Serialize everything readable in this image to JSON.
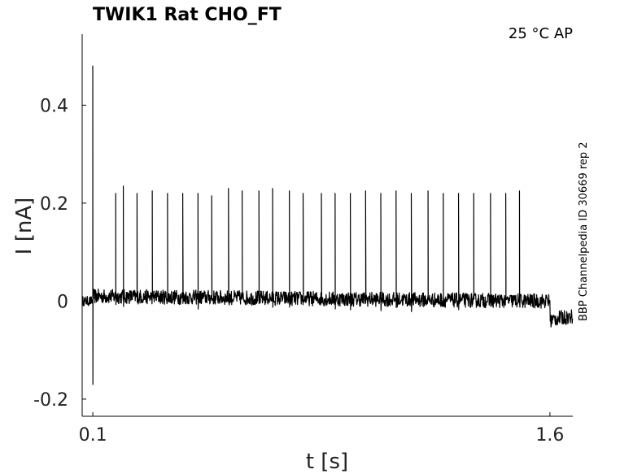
{
  "chart_data": {
    "type": "line",
    "title": "TWIK1  Rat  CHO_FT",
    "condition": "25 °C  AP",
    "side_label": "BBP Channelpedia ID 30669 rep 2",
    "xlabel": "t [s]",
    "ylabel": "I [nA]",
    "xlim": [
      0.065,
      1.675
    ],
    "ylim": [
      -0.235,
      0.545
    ],
    "xticks": [
      0.1,
      1.6
    ],
    "xtick_labels": [
      "0.1",
      "1.6"
    ],
    "yticks": [
      -0.2,
      0,
      0.2,
      0.4
    ],
    "ytick_labels": [
      "-0.2",
      "0",
      "0.2",
      "0.4"
    ],
    "grid": false,
    "legend": "none",
    "series": [
      {
        "color": "#000000",
        "baseline_before": 0.0,
        "step_on_time": 0.1,
        "step_on_peak": 0.48,
        "step_on_trough": -0.17,
        "baseline_during_start": 0.01,
        "baseline_during_end": 0.0,
        "step_off_time": 1.6,
        "baseline_after": -0.03,
        "spike_times": [
          0.175,
          0.2,
          0.245,
          0.295,
          0.345,
          0.395,
          0.445,
          0.49,
          0.545,
          0.59,
          0.645,
          0.69,
          0.745,
          0.79,
          0.85,
          0.895,
          0.945,
          0.995,
          1.045,
          1.095,
          1.145,
          1.2,
          1.25,
          1.3,
          1.35,
          1.405,
          1.455,
          1.5
        ],
        "spike_peaks": [
          0.22,
          0.235,
          0.22,
          0.225,
          0.22,
          0.22,
          0.22,
          0.215,
          0.23,
          0.225,
          0.225,
          0.23,
          0.225,
          0.22,
          0.22,
          0.22,
          0.22,
          0.225,
          0.22,
          0.225,
          0.22,
          0.225,
          0.22,
          0.22,
          0.22,
          0.22,
          0.22,
          0.225
        ]
      }
    ]
  }
}
